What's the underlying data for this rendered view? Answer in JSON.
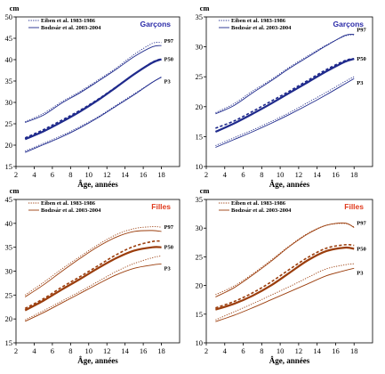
{
  "chart_data": [
    {
      "type": "line",
      "panel": "top-left",
      "title": "Garçons",
      "unit_label": "cm",
      "xlabel": "Âge, années",
      "xlim": [
        2,
        20
      ],
      "ylim": [
        15,
        50
      ],
      "xticks": [
        2,
        4,
        6,
        8,
        10,
        12,
        14,
        16,
        18
      ],
      "yticks": [
        15,
        20,
        25,
        30,
        35,
        40,
        45,
        50
      ],
      "color": "#1f2a8c",
      "legend": [
        "Eiben et al. 1983-1986",
        "Bodzsár et al. 2003-2004"
      ],
      "legend_position": "top-left",
      "x": [
        3,
        5,
        7,
        9,
        11,
        13,
        15,
        17,
        18
      ],
      "series": [
        {
          "name": "P97",
          "source": "Eiben et al. 1983-1986",
          "style": "dotted",
          "values": [
            25.5,
            27.4,
            30.1,
            32.5,
            35.2,
            38.0,
            41.2,
            43.8,
            44.0
          ]
        },
        {
          "name": "P97",
          "source": "Bodzsár et al. 2003-2004",
          "style": "solid",
          "values": [
            25.3,
            27.0,
            29.8,
            32.2,
            34.9,
            37.7,
            40.7,
            43.0,
            43.3
          ]
        },
        {
          "name": "P50",
          "source": "Eiben et al. 1983-1986",
          "style": "dashed",
          "values": [
            21.7,
            23.6,
            25.8,
            28.1,
            30.7,
            33.6,
            36.6,
            39.4,
            40.2
          ]
        },
        {
          "name": "P50",
          "source": "Bodzsár et al. 2003-2004",
          "style": "solid",
          "values": [
            21.4,
            23.2,
            25.4,
            27.8,
            30.5,
            33.5,
            36.6,
            39.3,
            40.1
          ]
        },
        {
          "name": "P3",
          "source": "Eiben et al. 1983-1986",
          "style": "dotted",
          "values": [
            18.6,
            20.4,
            22.2,
            24.3,
            26.6,
            29.3,
            32.0,
            34.7,
            36.0
          ]
        },
        {
          "name": "P3",
          "source": "Bodzsár et al. 2003-2004",
          "style": "solid",
          "values": [
            18.3,
            20.1,
            21.9,
            24.0,
            26.4,
            29.1,
            31.8,
            34.7,
            35.9
          ]
        }
      ],
      "line_labels": [
        "P97",
        "P50",
        "P3"
      ]
    },
    {
      "type": "line",
      "panel": "top-right",
      "title": "Garçons",
      "unit_label": "cm",
      "xlabel": "Âge, années",
      "xlim": [
        2,
        20
      ],
      "ylim": [
        10,
        35
      ],
      "xticks": [
        2,
        4,
        6,
        8,
        10,
        12,
        14,
        16,
        18
      ],
      "yticks": [
        10,
        15,
        20,
        25,
        30,
        35
      ],
      "color": "#1f2a8c",
      "legend": [
        "Eiben et al. 1983-1986",
        "Bodzsár et al. 2003-2004"
      ],
      "legend_position": "top-left",
      "x": [
        3,
        5,
        7,
        9,
        11,
        13,
        15,
        17,
        18
      ],
      "series": [
        {
          "name": "P97",
          "source": "Eiben et al. 1983-1986",
          "style": "dotted",
          "values": [
            19.0,
            20.5,
            22.6,
            24.5,
            26.6,
            28.5,
            30.3,
            31.8,
            32.0
          ]
        },
        {
          "name": "P97",
          "source": "Bodzsár et al. 2003-2004",
          "style": "solid",
          "values": [
            18.8,
            20.2,
            22.3,
            24.3,
            26.4,
            28.3,
            30.2,
            31.9,
            32.1
          ]
        },
        {
          "name": "P50",
          "source": "Eiben et al. 1983-1986",
          "style": "dashed",
          "values": [
            16.4,
            17.6,
            19.2,
            20.9,
            22.6,
            24.4,
            26.2,
            27.7,
            28.0
          ]
        },
        {
          "name": "P50",
          "source": "Bodzsár et al. 2003-2004",
          "style": "solid",
          "values": [
            15.8,
            17.2,
            18.8,
            20.5,
            22.3,
            24.1,
            25.9,
            27.5,
            28.0
          ]
        },
        {
          "name": "P3",
          "source": "Eiben et al. 1983-1986",
          "style": "dotted",
          "values": [
            13.5,
            14.8,
            16.1,
            17.5,
            19.0,
            20.7,
            22.4,
            24.2,
            25.0
          ]
        },
        {
          "name": "P3",
          "source": "Bodzsár et al. 2003-2004",
          "style": "solid",
          "values": [
            13.2,
            14.5,
            15.8,
            17.2,
            18.7,
            20.3,
            22.0,
            23.8,
            24.7
          ]
        }
      ],
      "line_labels": [
        "P97",
        "P50",
        "P3"
      ]
    },
    {
      "type": "line",
      "panel": "bottom-left",
      "title": "Filles",
      "unit_label": "cm",
      "xlabel": "Âge, années",
      "xlim": [
        2,
        20
      ],
      "ylim": [
        15,
        45
      ],
      "xticks": [
        2,
        4,
        6,
        8,
        10,
        12,
        14,
        16,
        18
      ],
      "yticks": [
        15,
        20,
        25,
        30,
        35,
        40,
        45
      ],
      "color": "#9b3d0c",
      "legend": [
        "Eiben et al. 1983-1986",
        "Bodzsár et al. 2003-2004"
      ],
      "legend_position": "top-left",
      "x": [
        3,
        5,
        7,
        9,
        11,
        13,
        15,
        17,
        18
      ],
      "series": [
        {
          "name": "P97",
          "source": "Eiben et al. 1983-1986",
          "style": "dotted",
          "values": [
            25.0,
            27.6,
            30.4,
            33.0,
            35.5,
            37.6,
            38.9,
            39.3,
            39.2
          ]
        },
        {
          "name": "P97",
          "source": "Bodzsár et al. 2003-2004",
          "style": "solid",
          "values": [
            24.6,
            27.1,
            29.9,
            32.6,
            35.1,
            37.1,
            38.3,
            38.5,
            38.3
          ]
        },
        {
          "name": "P50",
          "source": "Eiben et al. 1983-1986",
          "style": "dashed",
          "values": [
            22.2,
            24.2,
            26.6,
            28.8,
            31.1,
            33.4,
            35.2,
            36.2,
            36.3
          ]
        },
        {
          "name": "P50",
          "source": "Bodzsár et al. 2003-2004",
          "style": "solid",
          "values": [
            21.8,
            23.8,
            26.1,
            28.3,
            30.6,
            32.7,
            34.3,
            35.0,
            35.0
          ]
        },
        {
          "name": "P3",
          "source": "Eiben et al. 1983-1986",
          "style": "dotted",
          "values": [
            19.8,
            21.7,
            23.7,
            25.7,
            27.8,
            29.9,
            31.6,
            32.8,
            33.2
          ]
        },
        {
          "name": "P3",
          "source": "Bodzsár et al. 2003-2004",
          "style": "solid",
          "values": [
            19.5,
            21.3,
            23.3,
            25.3,
            27.3,
            29.2,
            30.6,
            31.3,
            31.5
          ]
        }
      ],
      "line_labels": [
        "P97",
        "P50",
        "P3"
      ]
    },
    {
      "type": "line",
      "panel": "bottom-right",
      "title": "Filles",
      "unit_label": "cm",
      "xlabel": "Âge, années",
      "xlim": [
        2,
        20
      ],
      "ylim": [
        10,
        35
      ],
      "xticks": [
        2,
        4,
        6,
        8,
        10,
        12,
        14,
        16,
        18
      ],
      "yticks": [
        10,
        15,
        20,
        25,
        30,
        35
      ],
      "color": "#9b3d0c",
      "legend": [
        "Eiben et al. 1983-1986",
        "Bodzsár et al. 2003-2004"
      ],
      "legend_position": "top-left",
      "x": [
        3,
        5,
        7,
        9,
        11,
        13,
        15,
        17,
        18
      ],
      "series": [
        {
          "name": "P97",
          "source": "Eiben et al. 1983-1986",
          "style": "dotted",
          "values": [
            18.4,
            19.9,
            22.0,
            24.4,
            26.9,
            29.1,
            30.5,
            30.8,
            30.2
          ]
        },
        {
          "name": "P97",
          "source": "Bodzsár et al. 2003-2004",
          "style": "solid",
          "values": [
            18.0,
            19.6,
            21.8,
            24.2,
            26.8,
            29.0,
            30.5,
            30.9,
            30.1
          ]
        },
        {
          "name": "P50",
          "source": "Eiben et al. 1983-1986",
          "style": "dashed",
          "values": [
            16.1,
            17.2,
            18.7,
            20.6,
            22.8,
            24.9,
            26.5,
            27.1,
            27.0
          ]
        },
        {
          "name": "P50",
          "source": "Bodzsár et al. 2003-2004",
          "style": "solid",
          "values": [
            15.8,
            16.8,
            18.2,
            20.0,
            22.2,
            24.4,
            26.0,
            26.6,
            26.4
          ]
        },
        {
          "name": "P3",
          "source": "Eiben et al. 1983-1986",
          "style": "dotted",
          "values": [
            14.0,
            15.4,
            16.8,
            18.3,
            19.8,
            21.4,
            22.9,
            23.6,
            23.8
          ]
        },
        {
          "name": "P3",
          "source": "Bodzsár et al. 2003-2004",
          "style": "solid",
          "values": [
            13.7,
            14.8,
            16.1,
            17.5,
            18.9,
            20.3,
            21.7,
            22.6,
            23.0
          ]
        }
      ],
      "line_labels": [
        "P97",
        "P50",
        "P3"
      ]
    }
  ]
}
